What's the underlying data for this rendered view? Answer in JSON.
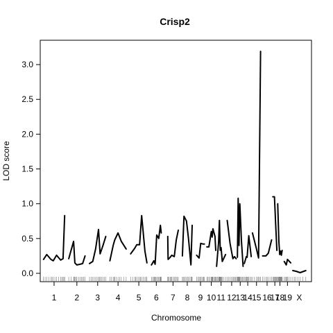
{
  "chart_data": {
    "type": "line",
    "title": "Crisp2",
    "xlabel": "Chromosome",
    "ylabel": "LOD score",
    "ylim": [
      -0.12,
      3.35
    ],
    "yticks": [
      "0.0",
      "0.5",
      "1.0",
      "1.5",
      "2.0",
      "2.5",
      "3.0"
    ],
    "ytick_values": [
      0,
      0.5,
      1,
      1.5,
      2,
      2.5,
      3
    ],
    "grid": false,
    "legend": "none",
    "chromosomes": [
      {
        "label": "1",
        "start": 0,
        "length": 100,
        "series": [
          [
            0,
            0.2
          ],
          [
            8,
            0.27
          ],
          [
            18,
            0.2
          ],
          [
            24,
            0.18
          ],
          [
            32,
            0.26
          ],
          [
            42,
            0.19
          ],
          [
            48,
            0.21
          ],
          [
            52,
            0.83
          ]
        ]
      },
      {
        "label": "2",
        "start": 62,
        "length": 100,
        "series": [
          [
            0,
            0.21
          ],
          [
            12,
            0.46
          ],
          [
            15,
            0.15
          ],
          [
            20,
            0.12
          ],
          [
            28,
            0.13
          ],
          [
            34,
            0.14
          ],
          [
            40,
            0.25
          ]
        ]
      },
      {
        "label": "3",
        "start": 113,
        "length": 75,
        "series": [
          [
            0,
            0.14
          ],
          [
            8,
            0.17
          ],
          [
            15,
            0.35
          ],
          [
            22,
            0.63
          ],
          [
            26,
            0.28
          ],
          [
            33,
            0.4
          ],
          [
            40,
            0.53
          ]
        ]
      },
      {
        "label": "4",
        "start": 163,
        "length": 80,
        "series": [
          [
            0,
            0.18
          ],
          [
            8,
            0.4
          ],
          [
            12,
            0.48
          ],
          [
            20,
            0.58
          ],
          [
            28,
            0.46
          ],
          [
            40,
            0.35
          ]
        ]
      },
      {
        "label": "5",
        "start": 214,
        "length": 80,
        "series": [
          [
            0,
            0.28
          ],
          [
            10,
            0.36
          ],
          [
            15,
            0.41
          ],
          [
            22,
            0.41
          ],
          [
            27,
            0.83
          ],
          [
            35,
            0.32
          ],
          [
            40,
            0.15
          ]
        ]
      },
      {
        "label": "6",
        "start": 265,
        "length": 65,
        "series": [
          [
            0,
            0.12
          ],
          [
            6,
            0.18
          ],
          [
            9,
            0.13
          ],
          [
            13,
            0.55
          ],
          [
            18,
            0.5
          ],
          [
            22,
            0.69
          ],
          [
            24,
            0.58
          ]
        ]
      },
      {
        "label": "7",
        "start": 305,
        "length": 70,
        "series": [
          [
            0,
            0.53
          ],
          [
            1,
            0.2
          ],
          [
            6,
            0.23
          ],
          [
            10,
            0.26
          ],
          [
            16,
            0.24
          ],
          [
            21,
            0.48
          ],
          [
            26,
            0.62
          ]
        ]
      },
      {
        "label": "8",
        "start": 341,
        "length": 65,
        "series": [
          [
            0,
            0.25
          ],
          [
            4,
            0.82
          ],
          [
            10,
            0.75
          ],
          [
            15,
            0.5
          ],
          [
            21,
            0.12
          ],
          [
            24,
            0.69
          ]
        ]
      },
      {
        "label": "9",
        "start": 376,
        "length": 65,
        "series": [
          [
            0,
            0.26
          ],
          [
            6,
            0.22
          ],
          [
            10,
            0.43
          ],
          [
            16,
            0.42
          ],
          [
            19,
            0.42
          ]
        ]
      },
      {
        "label": "10",
        "start": 401,
        "length": 60,
        "series": [
          [
            0,
            0.38
          ],
          [
            5,
            0.38
          ],
          [
            11,
            0.6
          ],
          [
            13,
            0.52
          ],
          [
            15,
            0.64
          ],
          [
            20,
            0.53
          ],
          [
            22,
            0.33
          ]
        ]
      },
      {
        "label": "11",
        "start": 425,
        "length": 60,
        "series": [
          [
            0,
            0.1
          ],
          [
            5,
            0.45
          ],
          [
            7,
            0.76
          ],
          [
            9,
            0.33
          ],
          [
            11,
            0.37
          ],
          [
            14,
            0.17
          ],
          [
            22,
            0.27
          ]
        ]
      },
      {
        "label": "12",
        "start": 451,
        "length": 55,
        "series": [
          [
            0,
            0.76
          ],
          [
            7,
            0.43
          ],
          [
            14,
            0.21
          ],
          [
            18,
            0.24
          ],
          [
            22,
            0.21
          ]
        ]
      },
      {
        "label": "13",
        "start": 476,
        "length": 55,
        "series": [
          [
            0,
            0.23
          ],
          [
            2,
            1.08
          ],
          [
            4,
            0.4
          ],
          [
            6,
            1.0
          ],
          [
            10,
            0.47
          ],
          [
            14,
            0.1
          ]
        ]
      },
      {
        "label": "14",
        "start": 493,
        "length": 55,
        "series": [
          [
            0,
            0.14
          ],
          [
            5,
            0.24
          ],
          [
            7,
            0.23
          ],
          [
            11,
            0.54
          ],
          [
            17,
            0.24
          ]
        ]
      },
      {
        "label": "15",
        "start": 513,
        "length": 55,
        "series": [
          [
            0,
            0.58
          ],
          [
            10,
            0.35
          ],
          [
            15,
            0.22
          ],
          [
            20,
            3.19
          ]
        ]
      },
      {
        "label": "16",
        "start": 538,
        "length": 55,
        "series": [
          [
            0,
            0.25
          ],
          [
            8,
            0.25
          ],
          [
            14,
            0.29
          ],
          [
            22,
            0.48
          ]
        ]
      },
      {
        "label": "17",
        "start": 563,
        "length": 50,
        "series": [
          [
            0,
            1.1
          ],
          [
            4,
            1.1
          ],
          [
            7,
            0.72
          ],
          [
            10,
            0.33
          ]
        ]
      },
      {
        "label": "18",
        "start": 575,
        "length": 45,
        "series": [
          [
            0,
            1.0
          ],
          [
            3,
            0.45
          ],
          [
            5,
            0.27
          ],
          [
            7,
            0.32
          ],
          [
            9,
            0.26
          ],
          [
            11,
            0.33
          ]
        ]
      },
      {
        "label": "19",
        "start": 591,
        "length": 40,
        "series": [
          [
            0,
            0.17
          ],
          [
            5,
            0.12
          ],
          [
            8,
            0.2
          ],
          [
            16,
            0.15
          ]
        ]
      },
      {
        "label": "X",
        "start": 612,
        "length": 70,
        "series": [
          [
            0,
            0.04
          ],
          [
            8,
            0.03
          ],
          [
            18,
            0.01
          ],
          [
            32,
            0.04
          ]
        ]
      }
    ]
  }
}
